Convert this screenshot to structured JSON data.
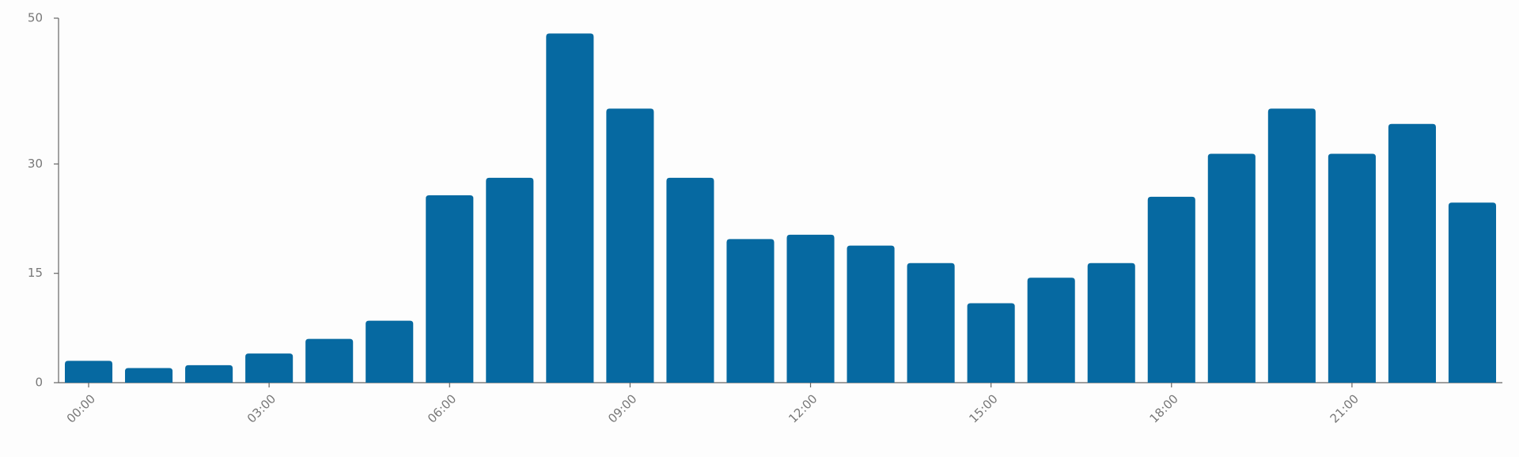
{
  "chart_data": {
    "type": "bar",
    "categories": [
      "00:00",
      null,
      null,
      "03:00",
      null,
      null,
      "06:00",
      null,
      null,
      "09:00",
      null,
      null,
      "12:00",
      null,
      null,
      "15:00",
      null,
      null,
      "18:00",
      null,
      null,
      "21:00",
      null,
      null
    ],
    "values": [
      3,
      2,
      2.4,
      4,
      6,
      8.5,
      25.7,
      28.1,
      47.9,
      37.6,
      28.1,
      19.7,
      20.3,
      18.8,
      16.4,
      10.9,
      14.4,
      16.4,
      25.5,
      31.4,
      37.6,
      31.4,
      35.5,
      24.7
    ],
    "color": "#0669a1",
    "ylim": [
      0,
      50
    ],
    "yticks": [
      0,
      15,
      30,
      50
    ],
    "grid": false
  }
}
